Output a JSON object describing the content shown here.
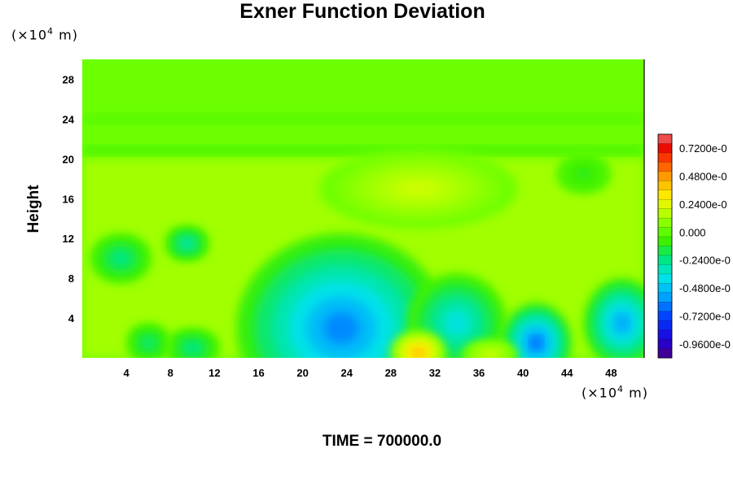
{
  "chart_data": {
    "type": "heatmap",
    "title": "Exner Function Deviation",
    "ylabel": "Height",
    "xunit": "(×10⁴ m)",
    "yunit": "(×10⁴ m)",
    "unit_prefix": "(×10",
    "unit_exp": "4",
    "unit_suffix": " m)",
    "xlim": [
      0,
      51
    ],
    "ylim": [
      0,
      30
    ],
    "xticks": [
      4,
      8,
      12,
      16,
      20,
      24,
      28,
      32,
      36,
      40,
      44,
      48
    ],
    "yticks": [
      4,
      8,
      12,
      16,
      20,
      24,
      28
    ],
    "colorbar": {
      "labels": [
        "0.7200e-0",
        "0.4800e-0",
        "0.2400e-0",
        "0.000",
        "-0.2400e-0",
        "-0.4800e-0",
        "-0.7200e-0",
        "-0.9600e-0"
      ],
      "values": [
        0.72,
        0.48,
        0.24,
        0.0,
        -0.24,
        -0.48,
        -0.72,
        -0.96
      ],
      "range": [
        -1.08,
        0.84
      ],
      "levels": 24
    },
    "background_level": 0.0,
    "upper_region_level": -0.05,
    "features": [
      {
        "x": 23.5,
        "y": 3.0,
        "level": -0.6,
        "rx": 9.5,
        "ry": 9.5
      },
      {
        "x": 34,
        "y": 3.5,
        "level": -0.4,
        "rx": 4.5,
        "ry": 5
      },
      {
        "x": 41.2,
        "y": 1.5,
        "level": -0.65,
        "rx": 3.2,
        "ry": 4
      },
      {
        "x": 49,
        "y": 3.5,
        "level": -0.55,
        "rx": 3.5,
        "ry": 4.5
      },
      {
        "x": 30.5,
        "y": 0.5,
        "level": 0.42,
        "rx": 2.5,
        "ry": 2.2
      },
      {
        "x": 30.5,
        "y": 17,
        "level": 0.2,
        "rx": 9,
        "ry": 4
      },
      {
        "x": 3.5,
        "y": 10,
        "level": -0.25,
        "rx": 2.8,
        "ry": 2.5
      },
      {
        "x": 9.5,
        "y": 11.5,
        "level": -0.3,
        "rx": 2,
        "ry": 1.8
      },
      {
        "x": 10,
        "y": 1,
        "level": -0.25,
        "rx": 2.5,
        "ry": 2
      },
      {
        "x": 6,
        "y": 1.5,
        "level": -0.22,
        "rx": 2,
        "ry": 2
      },
      {
        "x": 37,
        "y": 0.3,
        "level": 0.2,
        "rx": 2.5,
        "ry": 1.5
      },
      {
        "x": 45.5,
        "y": 18.5,
        "level": -0.12,
        "rx": 2.5,
        "ry": 2
      }
    ],
    "time_label": "TIME = 700000.0"
  }
}
